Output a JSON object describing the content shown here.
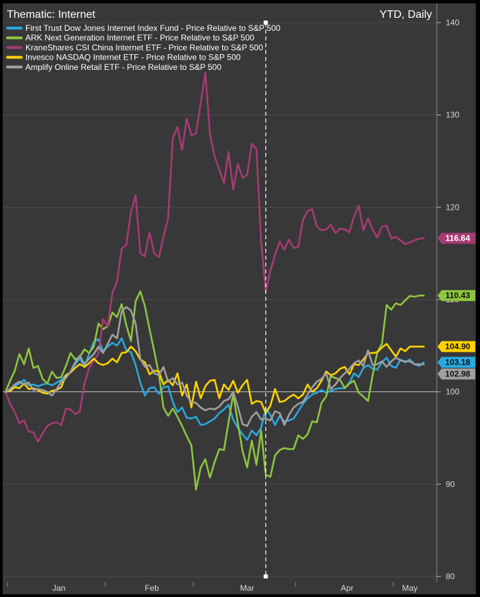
{
  "chart_data": {
    "type": "line",
    "title": "Thematic: Internet",
    "subtitle": "YTD, Daily",
    "ylim": [
      80,
      140
    ],
    "y_ticks": [
      80,
      90,
      100,
      110,
      120,
      130,
      140
    ],
    "x_months": [
      "Jan",
      "Feb",
      "Mar",
      "Apr",
      "May"
    ],
    "grid": true,
    "legend_position": "top-left",
    "reference_line": 100,
    "marker_date": "Mar 23",
    "x": [
      "Dec 31",
      "Jan 2",
      "Jan 3",
      "Jan 6",
      "Jan 7",
      "Jan 8",
      "Jan 9",
      "Jan 10",
      "Jan 13",
      "Jan 14",
      "Jan 15",
      "Jan 16",
      "Jan 17",
      "Jan 21",
      "Jan 22",
      "Jan 23",
      "Jan 24",
      "Jan 27",
      "Jan 28",
      "Jan 29",
      "Jan 30",
      "Jan 31",
      "Feb 3",
      "Feb 4",
      "Feb 5",
      "Feb 6",
      "Feb 7",
      "Feb 10",
      "Feb 11",
      "Feb 12",
      "Feb 13",
      "Feb 14",
      "Feb 18",
      "Feb 19",
      "Feb 20",
      "Feb 21",
      "Feb 24",
      "Feb 25",
      "Feb 26",
      "Feb 27",
      "Feb 28",
      "Mar 2",
      "Mar 3",
      "Mar 4",
      "Mar 5",
      "Mar 6",
      "Mar 9",
      "Mar 10",
      "Mar 11",
      "Mar 12",
      "Mar 13",
      "Mar 16",
      "Mar 17",
      "Mar 18",
      "Mar 19",
      "Mar 20",
      "Mar 23",
      "Mar 24",
      "Mar 25",
      "Mar 26",
      "Mar 27",
      "Mar 30",
      "Mar 31",
      "Apr 1",
      "Apr 2",
      "Apr 3",
      "Apr 6",
      "Apr 7",
      "Apr 8",
      "Apr 9",
      "Apr 13",
      "Apr 14",
      "Apr 15",
      "Apr 16",
      "Apr 17",
      "Apr 20",
      "Apr 21",
      "Apr 22",
      "Apr 23",
      "Apr 24",
      "Apr 27",
      "Apr 28",
      "Apr 29",
      "Apr 30",
      "May 1",
      "May 4",
      "May 5",
      "May 6",
      "May 7",
      "May 8",
      "May 11"
    ],
    "series": [
      {
        "name": "First Trust Dow Jones Internet Index Fund - Price Relative to S&P 500",
        "color": "#29a9e1",
        "last_label": "103.18",
        "values": [
          100,
          100.2,
          100.6,
          100.9,
          101.3,
          100.7,
          100.8,
          100.6,
          100.8,
          100.9,
          100.7,
          101.0,
          101.3,
          101.8,
          102.1,
          103.0,
          103.6,
          102.8,
          104.1,
          105.4,
          105.7,
          104.4,
          104.9,
          105.3,
          105.0,
          105.8,
          104.5,
          104.3,
          102.9,
          101.0,
          99.6,
          100.4,
          100.5,
          99.8,
          100.5,
          100.6,
          98.9,
          97.8,
          98.3,
          97.2,
          97.1,
          97.3,
          96.4,
          96.5,
          96.8,
          97.1,
          97.7,
          98.1,
          98.6,
          97.0,
          96.1,
          95.4,
          94.8,
          95.8,
          95.3,
          96.1,
          98.2,
          97.5,
          96.4,
          97.4,
          96.8,
          96.9,
          97.1,
          97.9,
          98.7,
          99.3,
          99.7,
          99.9,
          100.2,
          99.9,
          100.1,
          100.3,
          100.4,
          100.4,
          101.0,
          102.0,
          101.6,
          102.6,
          102.9,
          102.5,
          102.4,
          103.2,
          103.7,
          102.8,
          102.6,
          103.5,
          103.2,
          103.5,
          103.0,
          102.8,
          103.2
        ]
      },
      {
        "name": "ARK Next Generation Internet ETF - Price Relative to S&P 500",
        "color": "#8dc63f",
        "last_label": "110.43",
        "values": [
          100,
          101.2,
          102.3,
          104.1,
          103.0,
          104.7,
          102.6,
          102.8,
          101.4,
          100.9,
          102.2,
          101.5,
          101.6,
          102.8,
          104.2,
          103.5,
          103.8,
          104.6,
          104.2,
          104.9,
          107.4,
          106.8,
          107.1,
          108.6,
          108.1,
          109.5,
          107.2,
          105.5,
          109.8,
          110.9,
          109.3,
          106.8,
          104.4,
          101.9,
          98.3,
          97.4,
          98.2,
          97.3,
          96.3,
          95.2,
          94.2,
          89.4,
          91.8,
          92.7,
          90.7,
          92.4,
          93.8,
          93.7,
          96.7,
          99.8,
          96.6,
          93.6,
          91.8,
          94.7,
          92.1,
          95.8,
          91.0,
          90.8,
          93.1,
          93.7,
          93.9,
          93.8,
          93.8,
          95.3,
          94.9,
          95.4,
          96.8,
          96.7,
          98.8,
          99.5,
          101.7,
          101.5,
          101.3,
          100.4,
          100.9,
          101.2,
          99.9,
          99.5,
          99.0,
          101.8,
          104.3,
          105.2,
          109.4,
          108.9,
          109.6,
          109.4,
          109.9,
          110.4,
          110.3,
          110.43,
          110.43
        ]
      },
      {
        "name": "KraneShares CSI China Internet ETF - Price Relative to S&P 500",
        "color": "#a83a75",
        "last_label": "116.64",
        "values": [
          100,
          98.7,
          97.8,
          96.6,
          96.9,
          95.7,
          95.6,
          94.6,
          95.5,
          96.3,
          96.6,
          96.7,
          96.4,
          98.2,
          98.1,
          97.6,
          97.9,
          100.9,
          102.6,
          103.4,
          104.1,
          107.9,
          107.1,
          110.7,
          112.0,
          115.5,
          115.9,
          119.5,
          121.3,
          115.0,
          114.7,
          117.3,
          115.0,
          114.6,
          116.8,
          118.8,
          127.5,
          128.7,
          126.2,
          129.6,
          127.8,
          128.0,
          131.3,
          134.6,
          127.9,
          125.5,
          124.1,
          122.6,
          126.0,
          121.9,
          124.7,
          123.2,
          123.5,
          126.9,
          126.3,
          116.3,
          110.9,
          113.1,
          114.8,
          116.3,
          115.4,
          116.5,
          115.6,
          115.7,
          118.6,
          119.6,
          119.8,
          117.9,
          117.5,
          117.6,
          118.1,
          117.2,
          117.7,
          117.6,
          117.3,
          119.0,
          120.2,
          117.5,
          118.8,
          117.6,
          116.7,
          117.9,
          118.0,
          116.6,
          116.8,
          116.4,
          116.0,
          116.2,
          116.4,
          116.6,
          116.64
        ]
      },
      {
        "name": "Invesco NASDAQ Internet ETF - Price Relative to S&P 500",
        "color": "#ffd200",
        "last_label": "104.90",
        "values": [
          100,
          100.1,
          100.5,
          100.4,
          100.9,
          100.3,
          100.4,
          100.2,
          99.9,
          99.8,
          100.1,
          100.2,
          100.5,
          101.8,
          102.1,
          102.6,
          103.0,
          102.7,
          103.1,
          103.6,
          103.1,
          102.9,
          103.1,
          103.6,
          103.2,
          104.2,
          104.3,
          104.9,
          104.4,
          103.5,
          103.2,
          101.9,
          102.3,
          102.2,
          100.8,
          101.3,
          100.7,
          102.0,
          99.6,
          100.8,
          98.3,
          101.1,
          99.3,
          100.6,
          101.2,
          101.3,
          99.3,
          100.8,
          100.2,
          101.2,
          99.9,
          100.7,
          101.3,
          98.7,
          99.0,
          98.9,
          97.7,
          98.5,
          100.3,
          98.9,
          99.0,
          99.4,
          99.7,
          99.3,
          99.7,
          100.8,
          100.0,
          100.4,
          101.2,
          102.2,
          101.8,
          102.0,
          102.5,
          102.7,
          101.9,
          103.0,
          102.9,
          103.5,
          104.2,
          104.2,
          104.3,
          104.8,
          105.2,
          104.5,
          103.8,
          104.7,
          104.4,
          104.9,
          104.9,
          104.9,
          104.9
        ]
      },
      {
        "name": "Amplify Online Retail ETF - Price Relative to S&P 500",
        "color": "#a0a0a0",
        "last_label": "102.98",
        "values": [
          100,
          100.3,
          100.8,
          101.1,
          100.8,
          101.0,
          100.2,
          100.3,
          100.2,
          100.0,
          99.6,
          100.3,
          101.1,
          101.5,
          102.2,
          103.2,
          103.9,
          103.0,
          103.6,
          104.1,
          104.9,
          104.2,
          105.2,
          106.2,
          105.8,
          108.7,
          109.2,
          108.8,
          107.4,
          103.6,
          102.7,
          102.9,
          102.0,
          101.8,
          102.7,
          101.1,
          101.5,
          100.8,
          101.0,
          99.6,
          98.9,
          98.8,
          98.3,
          98.0,
          98.2,
          98.1,
          98.4,
          99.0,
          99.2,
          100.0,
          98.4,
          96.5,
          96.3,
          97.3,
          97.8,
          97.0,
          97.1,
          96.9,
          97.9,
          97.7,
          96.4,
          97.5,
          98.3,
          98.7,
          98.9,
          99.7,
          100.5,
          101.1,
          101.4,
          102.0,
          100.3,
          100.8,
          101.5,
          102.0,
          102.5,
          103.1,
          103.4,
          102.8,
          104.5,
          102.9,
          103.0,
          103.3,
          102.7,
          103.3,
          103.7,
          103.4,
          103.3,
          103.3,
          103.0,
          102.98,
          102.98
        ]
      }
    ]
  }
}
